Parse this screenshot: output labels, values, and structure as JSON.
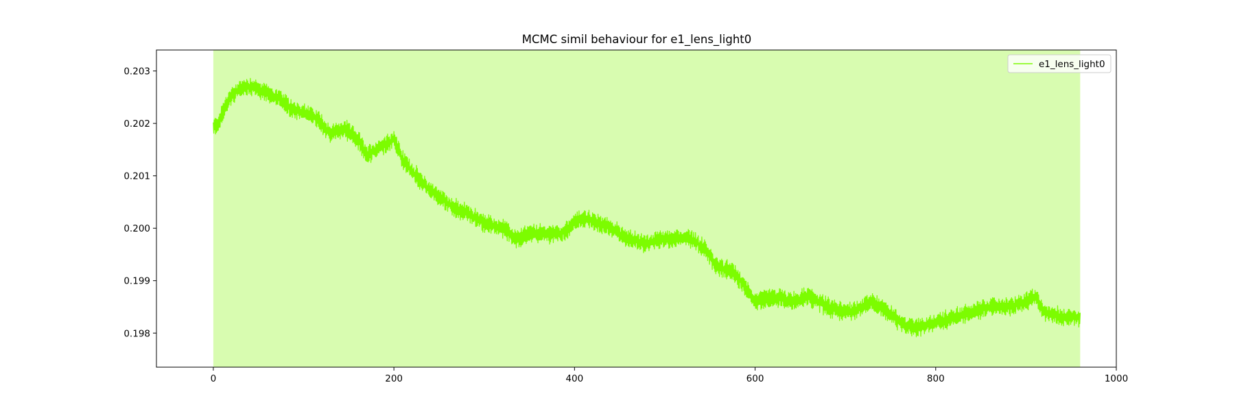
{
  "chart_data": {
    "type": "line",
    "title": "MCMC simil behaviour for e1_lens_light0",
    "xlabel": "",
    "ylabel": "",
    "xlim": [
      -63,
      1000
    ],
    "ylim": [
      0.19735,
      0.2034
    ],
    "xticks": [
      0,
      200,
      400,
      600,
      800,
      1000
    ],
    "yticks": [
      0.198,
      0.199,
      0.2,
      0.201,
      0.202,
      0.203
    ],
    "xtick_labels": [
      "0",
      "200",
      "400",
      "600",
      "800",
      "1000"
    ],
    "ytick_labels": [
      "0.198",
      "0.199",
      "0.200",
      "0.201",
      "0.202",
      "0.203"
    ],
    "grid": false,
    "legend": {
      "position": "top-right",
      "entries": [
        "e1_lens_light0"
      ]
    },
    "shaded_region": {
      "x_start": 0,
      "x_end": 960,
      "color": "#d8fcb0"
    },
    "series": [
      {
        "name": "e1_lens_light0",
        "color": "#7cfc00",
        "noise_amplitude": 0.00017,
        "x_range": [
          0,
          960
        ],
        "trend_x": [
          0,
          5,
          15,
          25,
          35,
          45,
          55,
          70,
          85,
          100,
          115,
          130,
          145,
          160,
          170,
          180,
          190,
          200,
          210,
          220,
          235,
          250,
          265,
          280,
          300,
          320,
          335,
          350,
          370,
          385,
          400,
          410,
          425,
          440,
          460,
          480,
          500,
          515,
          530,
          545,
          555,
          570,
          580,
          600,
          620,
          640,
          660,
          680,
          700,
          720,
          730,
          740,
          760,
          780,
          800,
          820,
          840,
          860,
          880,
          900,
          910,
          920,
          940,
          960
        ],
        "trend_y": [
          0.2019,
          0.202,
          0.2024,
          0.2026,
          0.2027,
          0.2027,
          0.2026,
          0.2025,
          0.2023,
          0.2022,
          0.2021,
          0.2018,
          0.2019,
          0.2017,
          0.2014,
          0.2015,
          0.2016,
          0.2017,
          0.2013,
          0.2011,
          0.2008,
          0.2006,
          0.2004,
          0.2003,
          0.2001,
          0.2,
          0.1998,
          0.1999,
          0.1999,
          0.1999,
          0.2001,
          0.2002,
          0.2001,
          0.2,
          0.1998,
          0.1997,
          0.1998,
          0.1998,
          0.1998,
          0.1996,
          0.1993,
          0.1992,
          0.1991,
          0.1986,
          0.1987,
          0.1986,
          0.1987,
          0.1985,
          0.1984,
          0.1985,
          0.1986,
          0.1985,
          0.1982,
          0.1981,
          0.1982,
          0.1983,
          0.1984,
          0.1985,
          0.1985,
          0.1986,
          0.1987,
          0.1984,
          0.1983,
          0.1983
        ]
      }
    ]
  }
}
